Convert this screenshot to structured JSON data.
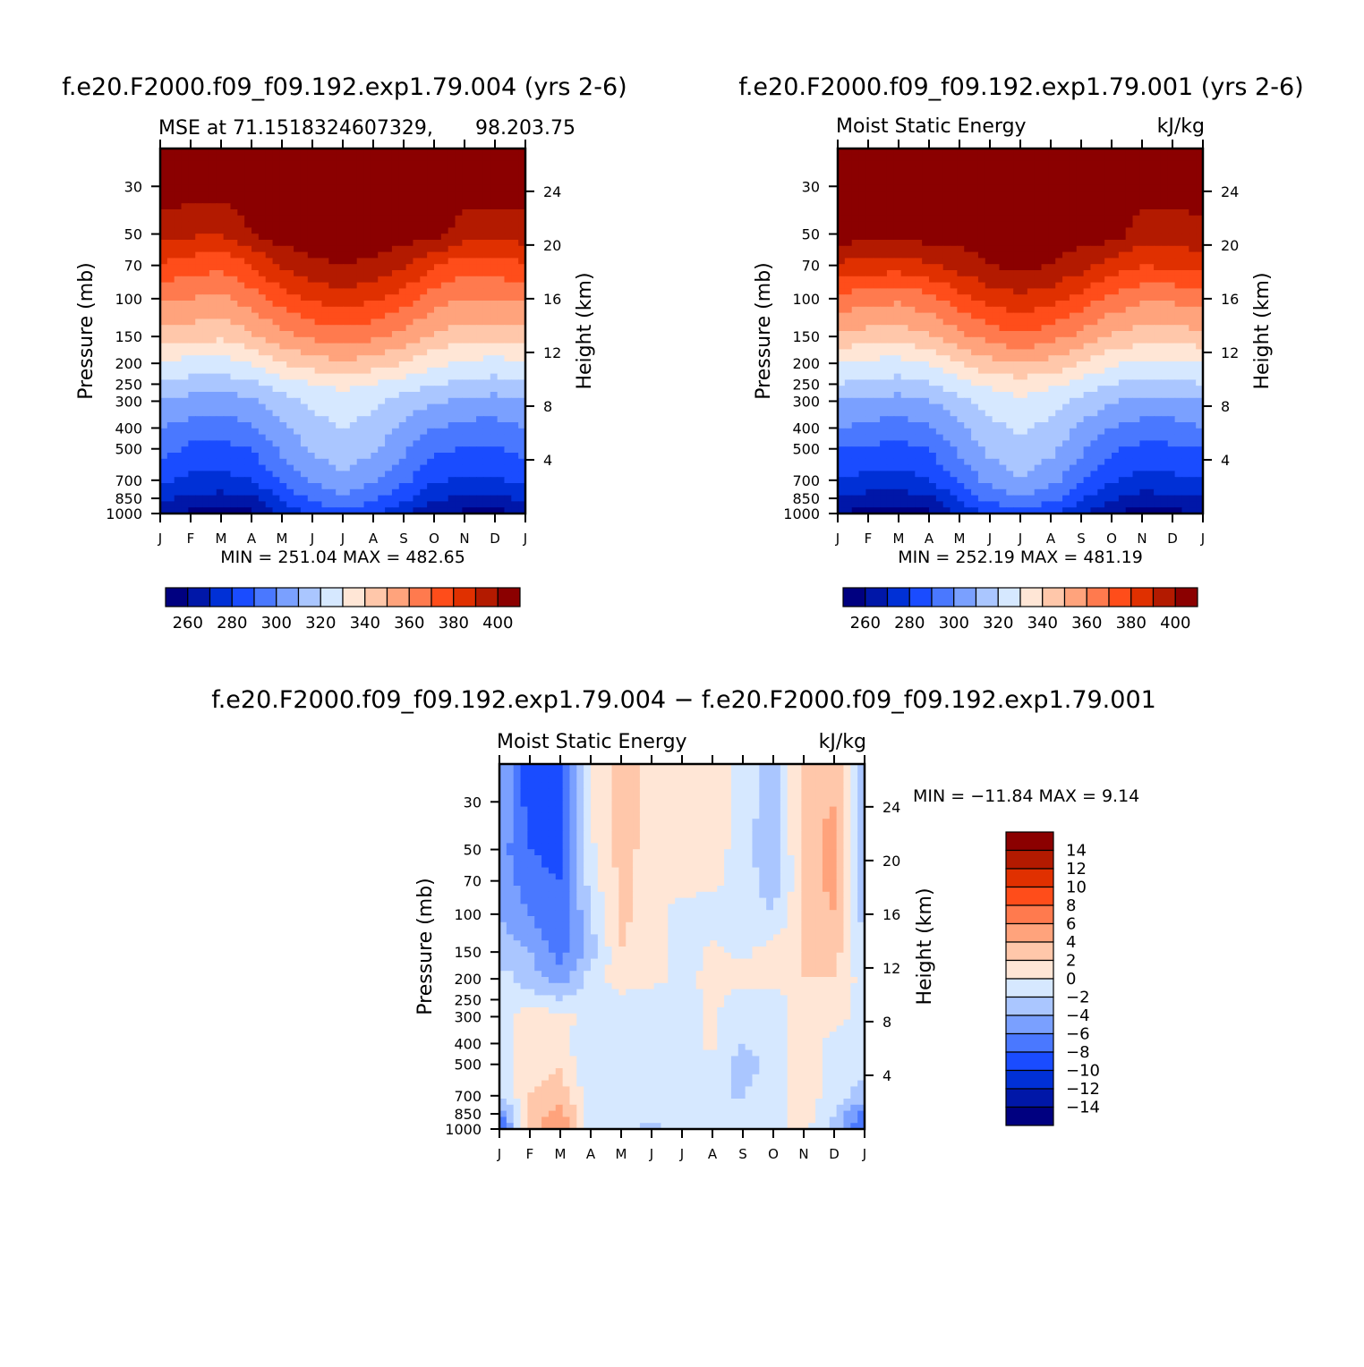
{
  "colors": {
    "mse_levels": [
      "#000080",
      "#0017a8",
      "#0030d6",
      "#1a4cff",
      "#4a78ff",
      "#7aa0ff",
      "#aac6ff",
      "#d6e8ff",
      "#ffe6d6",
      "#ffc7aa",
      "#ffa37c",
      "#ff7a4e",
      "#ff4d1a",
      "#e03000",
      "#b31a00",
      "#8b0000"
    ],
    "diff_levels": [
      "#000080",
      "#0017a8",
      "#0030d6",
      "#1a4cff",
      "#4a78ff",
      "#7aa0ff",
      "#aac6ff",
      "#d6e8ff",
      "#ffe6d6",
      "#ffc7aa",
      "#ffa37c",
      "#ff7a4e",
      "#ff4d1a",
      "#e03000",
      "#b31a00",
      "#8b0000"
    ]
  },
  "chart_data": [
    {
      "type": "heatmap",
      "title": "f.e20.F2000.f09_f09.192.exp1.79.004 (yrs 2-6)",
      "subtitle_left": "MSE at 71.1518324607329,",
      "subtitle_right": "98.203.75",
      "ylabel": "Pressure (mb)",
      "y2label": "Height (km)",
      "x_ticks": [
        "J",
        "F",
        "M",
        "A",
        "M",
        "J",
        "J",
        "A",
        "S",
        "O",
        "N",
        "D",
        "J"
      ],
      "y_ticks": [
        "30",
        "50",
        "70",
        "100",
        "150",
        "200",
        "250",
        "300",
        "400",
        "500",
        "700",
        "850",
        "1000"
      ],
      "y2_ticks": [
        "24",
        "20",
        "16",
        "12",
        "8",
        "4"
      ],
      "stats": "MIN = 251.04  MAX = 482.65",
      "colorbar_labels": [
        "260",
        "280",
        "300",
        "320",
        "340",
        "360",
        "380",
        "400"
      ],
      "levels": [
        255,
        260,
        270,
        280,
        290,
        300,
        310,
        320,
        330,
        340,
        350,
        360,
        370,
        380,
        390,
        400
      ],
      "pressure_rows": [
        30,
        50,
        70,
        100,
        150,
        200,
        250,
        300,
        400,
        500,
        700,
        850,
        1000
      ],
      "values": [
        [
          405,
          405,
          405,
          405,
          405,
          405,
          405,
          405,
          405,
          405,
          405,
          405,
          405
        ],
        [
          395,
          392,
          390,
          400,
          405,
          405,
          405,
          405,
          405,
          405,
          395,
          393,
          395
        ],
        [
          378,
          375,
          372,
          380,
          392,
          398,
          400,
          398,
          392,
          380,
          374,
          376,
          378
        ],
        [
          362,
          360,
          358,
          365,
          375,
          382,
          385,
          382,
          375,
          365,
          360,
          360,
          362
        ],
        [
          346,
          344,
          342,
          348,
          356,
          362,
          365,
          362,
          356,
          348,
          344,
          344,
          346
        ],
        [
          328,
          326,
          325,
          330,
          340,
          345,
          348,
          345,
          340,
          332,
          328,
          326,
          328
        ],
        [
          318,
          316,
          315,
          318,
          325,
          330,
          333,
          330,
          325,
          320,
          318,
          316,
          318
        ],
        [
          310,
          306,
          305,
          308,
          316,
          322,
          326,
          322,
          316,
          312,
          308,
          306,
          310
        ],
        [
          300,
          296,
          295,
          298,
          308,
          316,
          320,
          316,
          308,
          300,
          297,
          296,
          300
        ],
        [
          294,
          288,
          287,
          290,
          302,
          312,
          316,
          312,
          302,
          292,
          289,
          288,
          294
        ],
        [
          282,
          278,
          277,
          280,
          292,
          302,
          308,
          302,
          292,
          282,
          278,
          279,
          282
        ],
        [
          272,
          268,
          266,
          268,
          282,
          292,
          298,
          292,
          282,
          272,
          268,
          267,
          272
        ],
        [
          262,
          258,
          256,
          258,
          270,
          282,
          285,
          282,
          270,
          262,
          258,
          257,
          262
        ]
      ]
    },
    {
      "type": "heatmap",
      "title": "f.e20.F2000.f09_f09.192.exp1.79.001 (yrs 2-6)",
      "subtitle_left": "Moist Static Energy",
      "subtitle_right": "kJ/kg",
      "ylabel": "Pressure (mb)",
      "y2label": "Height (km)",
      "x_ticks": [
        "J",
        "F",
        "M",
        "A",
        "M",
        "J",
        "J",
        "A",
        "S",
        "O",
        "N",
        "D",
        "J"
      ],
      "y_ticks": [
        "30",
        "50",
        "70",
        "100",
        "150",
        "200",
        "250",
        "300",
        "400",
        "500",
        "700",
        "850",
        "1000"
      ],
      "y2_ticks": [
        "24",
        "20",
        "16",
        "12",
        "8",
        "4"
      ],
      "stats": "MIN = 252.19  MAX = 481.19",
      "colorbar_labels": [
        "260",
        "280",
        "300",
        "320",
        "340",
        "360",
        "380",
        "400"
      ],
      "levels": [
        255,
        260,
        270,
        280,
        290,
        300,
        310,
        320,
        330,
        340,
        350,
        360,
        370,
        380,
        390,
        400
      ],
      "pressure_rows": [
        30,
        50,
        70,
        100,
        150,
        200,
        250,
        300,
        400,
        500,
        700,
        850,
        1000
      ],
      "values": [
        [
          405,
          405,
          405,
          405,
          405,
          405,
          405,
          405,
          405,
          405,
          405,
          405,
          405
        ],
        [
          405,
          405,
          405,
          405,
          405,
          405,
          405,
          405,
          405,
          405,
          395,
          395,
          397
        ],
        [
          388,
          386,
          385,
          388,
          394,
          400,
          402,
          400,
          394,
          386,
          380,
          382,
          385
        ],
        [
          366,
          364,
          362,
          367,
          376,
          384,
          388,
          384,
          376,
          367,
          362,
          362,
          365
        ],
        [
          348,
          346,
          344,
          349,
          357,
          364,
          368,
          364,
          357,
          349,
          345,
          345,
          347
        ],
        [
          329,
          327,
          326,
          330,
          340,
          347,
          350,
          347,
          340,
          332,
          327,
          327,
          329
        ],
        [
          320,
          318,
          316,
          319,
          326,
          332,
          336,
          332,
          326,
          320,
          317,
          317,
          320
        ],
        [
          310,
          308,
          306,
          309,
          317,
          324,
          328,
          324,
          317,
          311,
          307,
          307,
          310
        ],
        [
          300,
          297,
          296,
          299,
          308,
          317,
          322,
          317,
          308,
          300,
          296,
          296,
          300
        ],
        [
          290,
          288,
          287,
          290,
          302,
          313,
          318,
          313,
          302,
          291,
          287,
          288,
          290
        ],
        [
          280,
          277,
          276,
          280,
          292,
          303,
          310,
          303,
          292,
          281,
          277,
          278,
          280
        ],
        [
          270,
          266,
          265,
          268,
          282,
          293,
          300,
          293,
          282,
          271,
          266,
          267,
          270
        ],
        [
          260,
          256,
          255,
          258,
          270,
          282,
          286,
          282,
          270,
          260,
          256,
          257,
          260
        ]
      ]
    },
    {
      "type": "heatmap",
      "title": "f.e20.F2000.f09_f09.192.exp1.79.004 − f.e20.F2000.f09_f09.192.exp1.79.001",
      "subtitle_left": "Moist Static Energy",
      "subtitle_right": "kJ/kg",
      "ylabel": "Pressure (mb)",
      "y2label": "Height (km)",
      "x_ticks": [
        "J",
        "F",
        "M",
        "A",
        "M",
        "J",
        "J",
        "A",
        "S",
        "O",
        "N",
        "D",
        "J"
      ],
      "y_ticks": [
        "30",
        "50",
        "70",
        "100",
        "150",
        "200",
        "250",
        "300",
        "400",
        "500",
        "700",
        "850",
        "1000"
      ],
      "y2_ticks": [
        "24",
        "20",
        "16",
        "12",
        "8",
        "4"
      ],
      "stats": "MIN = −11.84 MAX =    9.14",
      "colorbar_labels": [
        "14",
        "12",
        "10",
        "8",
        "6",
        "4",
        "2",
        "0",
        "−2",
        "−4",
        "−6",
        "−8",
        "−10",
        "−12",
        "−14"
      ],
      "levels": [
        -16,
        -14,
        -12,
        -10,
        -8,
        -6,
        -4,
        -2,
        0,
        2,
        4,
        6,
        8,
        10,
        12,
        14
      ],
      "pressure_rows": [
        30,
        50,
        70,
        100,
        150,
        200,
        250,
        300,
        400,
        500,
        700,
        850,
        1000
      ],
      "values": [
        [
          -4,
          -9,
          -9,
          0.5,
          3,
          1,
          1,
          1,
          -1,
          -3,
          3,
          4,
          -4
        ],
        [
          -5,
          -8,
          -9,
          -0.5,
          3,
          1,
          1,
          1,
          -1,
          -4,
          3,
          5,
          -4
        ],
        [
          -5,
          -7,
          -8,
          -1,
          2.5,
          1,
          1,
          0.5,
          -1,
          -3,
          2,
          5,
          -4
        ],
        [
          -4,
          -6,
          -8,
          -2,
          2.5,
          1,
          -1,
          -1,
          -1,
          -2,
          2,
          4,
          -3
        ],
        [
          -3,
          -4,
          -7,
          -3,
          2,
          1,
          -1,
          0.5,
          -0.5,
          1,
          2,
          3,
          -2
        ],
        [
          -1,
          -3,
          -5,
          -1,
          1,
          0.5,
          -0.5,
          0.5,
          1,
          1,
          2,
          2,
          -1
        ],
        [
          -1,
          -1,
          -2,
          -1,
          -0.5,
          -1,
          -1,
          0.5,
          -1,
          -1,
          1.5,
          1,
          -1
        ],
        [
          -1,
          1,
          1,
          -1,
          -1,
          -1,
          -2,
          0.5,
          -2,
          -1,
          1,
          1,
          -1
        ],
        [
          -1,
          1,
          1,
          -2,
          -1,
          -2,
          -1,
          0.5,
          -2,
          -1,
          1,
          -1,
          -1
        ],
        [
          -1,
          1,
          2,
          -2,
          -1,
          -2,
          -1,
          -1,
          -3,
          -1,
          1,
          -1,
          -1
        ],
        [
          -2,
          2,
          3,
          -1,
          -1,
          -1,
          -1,
          -2,
          -2,
          -1,
          1,
          -1,
          -3
        ],
        [
          -6,
          3,
          5,
          -1,
          -1,
          -1,
          -1,
          -1,
          -1,
          -1,
          1,
          -2,
          -7
        ],
        [
          -9,
          3,
          6,
          -1,
          -1,
          -3,
          -1,
          -1,
          -1,
          -1,
          1,
          -3,
          -9
        ]
      ]
    }
  ]
}
